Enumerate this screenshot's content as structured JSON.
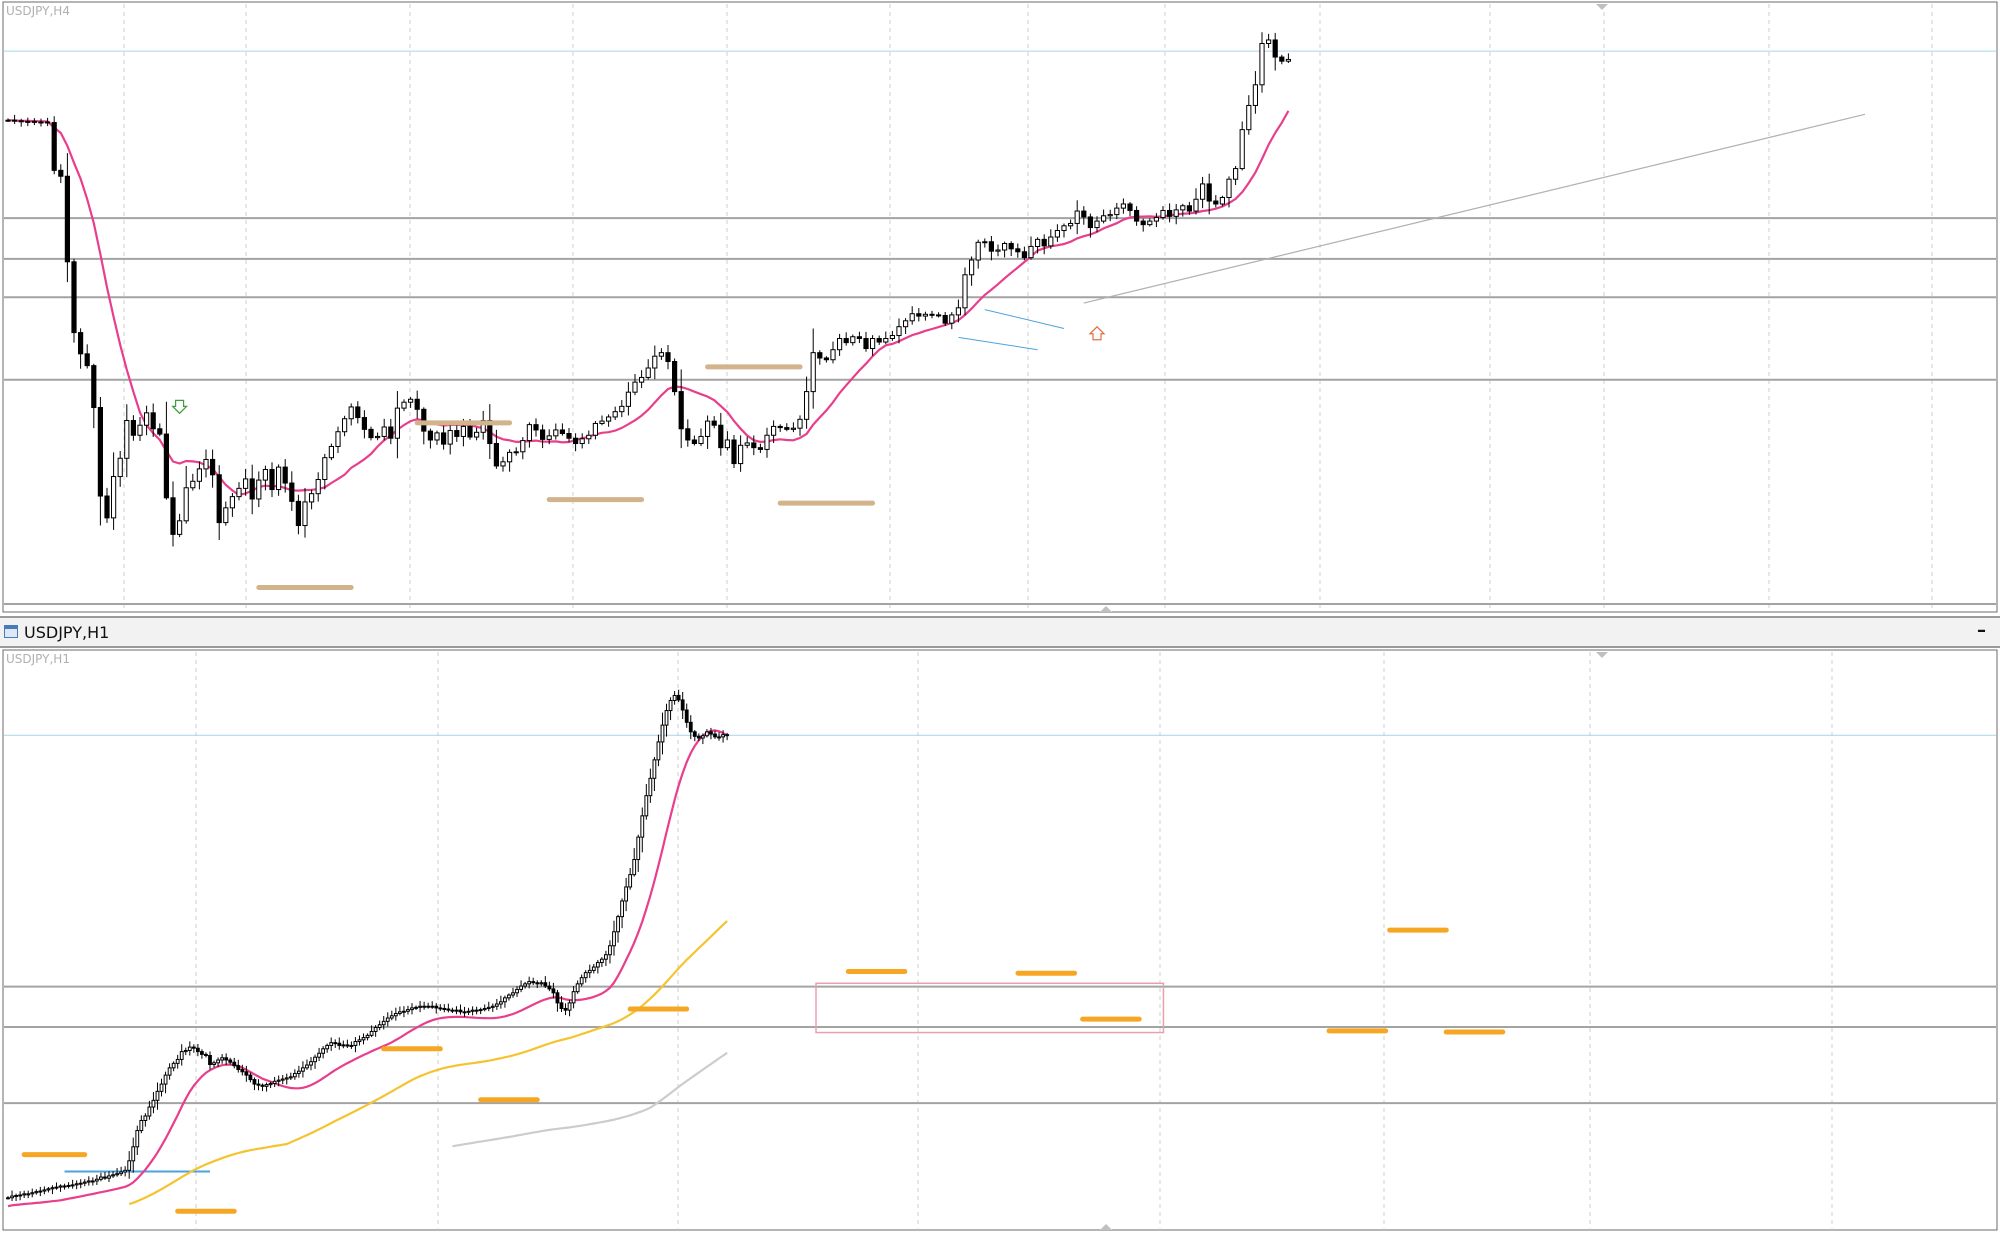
{
  "window": {
    "title": "USDJPY,H1",
    "minimize_label": "–"
  },
  "panes": [
    {
      "id": "h4",
      "label": "USDJPY,H4"
    },
    {
      "id": "h1",
      "label": "USDJPY,H1"
    }
  ],
  "colors": {
    "background": "#ffffff",
    "grid": "#cfcfcf",
    "level_line": "#a3a3a3",
    "bull_candle": "#ffffff",
    "bear_candle": "#000000",
    "candle_outline": "#000000",
    "ma_fast": "#e83e8c",
    "ma_mid": "#f4c430",
    "ma_slow": "#cccccc",
    "zone_h4": "#d2b48c",
    "zone_h1": "#f5a623",
    "current_price": "#a9d4ec",
    "trend_line": "#b0b0b0",
    "consolidation_box": "#e8a0b0",
    "triangle_line": "#4aa3df",
    "range_top": "#4aa3df"
  },
  "chart_data": [
    {
      "type": "candlestick",
      "symbol": "USDJPY",
      "timeframe": "H4",
      "title": "USDJPY,H4",
      "ylim": [
        0,
        100
      ],
      "grid": true,
      "closes": [
        82.0,
        81.9,
        81.8,
        81.8,
        81.7,
        81.7,
        81.6,
        73.5,
        72.5,
        58.0,
        46.0,
        42.4,
        40.4,
        33.3,
        18.3,
        14.6,
        21.6,
        24.7,
        31.1,
        28.6,
        30.3,
        32.4,
        29.7,
        28.8,
        18.0,
        11.8,
        14.1,
        19.7,
        20.8,
        22.9,
        24.5,
        21.9,
        13.8,
        16.3,
        18.2,
        19.6,
        21.2,
        17.8,
        21.0,
        22.8,
        19.4,
        23.2,
        20.5,
        17.4,
        13.3,
        17.3,
        18.7,
        21.1,
        24.8,
        26.7,
        29.2,
        31.4,
        33.4,
        31.6,
        29.6,
        28.2,
        28.4,
        30.0,
        28.1,
        33.2,
        34.2,
        34.7,
        33.0,
        29.3,
        27.8,
        29.0,
        27.1,
        29.4,
        28.4,
        30.1,
        28.3,
        29.1,
        31.1,
        27.2,
        23.4,
        24.1,
        25.7,
        25.8,
        27.7,
        30.4,
        29.5,
        27.9,
        28.5,
        29.5,
        28.9,
        28.1,
        27.2,
        28.0,
        28.6,
        30.6,
        31.0,
        31.7,
        32.6,
        33.5,
        35.9,
        37.6,
        38.4,
        40.0,
        42.0,
        42.6,
        41.1,
        36.0,
        29.7,
        27.8,
        27.2,
        28.4,
        31.0,
        30.3,
        26.5,
        27.8,
        23.8,
        26.9,
        27.3,
        26.5,
        26.2,
        28.6,
        30.1,
        29.9,
        29.6,
        29.8,
        31.3,
        36.0,
        42.6,
        41.7,
        41.4,
        43.1,
        45.0,
        44.3,
        45.3,
        45.0,
        43.3,
        45.0,
        44.4,
        45.0,
        45.5,
        47.0,
        48.0,
        49.2,
        48.8,
        49.1,
        49.0,
        48.9,
        47.6,
        49.0,
        50.2,
        55.8,
        58.3,
        61.3,
        61.4,
        59.8,
        60.0,
        61.1,
        60.2,
        59.7,
        58.7,
        60.6,
        61.8,
        60.7,
        62.2,
        63.3,
        64.1,
        64.5,
        66.6,
        65.6,
        63.8,
        64.9,
        65.8,
        66.0,
        67.1,
        67.8,
        66.7,
        64.9,
        64.3,
        64.9,
        65.5,
        66.7,
        65.7,
        66.8,
        67.5,
        66.6,
        68.6,
        71.2,
        68.3,
        67.8,
        68.9,
        72.0,
        73.8,
        80.4,
        84.5,
        88.0,
        95.0,
        95.6,
        92.7,
        92.0,
        92.3
      ],
      "series": [
        {
          "name": "",
          "kind": "moving_average"
        }
      ],
      "horizontal_levels": [
        0.0,
        38.0,
        52.0,
        58.5,
        65.4
      ],
      "current_price": 93.7,
      "zones": [
        {
          "price": 2.8,
          "bar_from": 38,
          "bar_to": 52
        },
        {
          "price": 30.7,
          "bar_from": 62,
          "bar_to": 76
        },
        {
          "price": 17.7,
          "bar_from": 82,
          "bar_to": 96
        },
        {
          "price": 17.1,
          "bar_from": 117,
          "bar_to": 131
        },
        {
          "price": 40.2,
          "bar_from": 106,
          "bar_to": 120
        }
      ],
      "trend_line": {
        "from": [
          163,
          51.0
        ],
        "to": [
          245,
          80.0
        ]
      },
      "arrows": [
        {
          "bar": 26,
          "price": 33.5,
          "direction": "down",
          "color": "#3aa03a"
        },
        {
          "bar": 165,
          "price": 45.8,
          "direction": "up",
          "color": "#e07040"
        }
      ]
    },
    {
      "type": "candlestick",
      "symbol": "USDJPY",
      "timeframe": "H1",
      "title": "USDJPY,H1",
      "ylim": [
        0,
        100
      ],
      "grid": true,
      "closes": [
        5.4,
        5.7,
        5.8,
        5.9,
        6.1,
        6.1,
        6.3,
        6.5,
        6.6,
        6.8,
        7.0,
        7.2,
        7.3,
        7.5,
        7.5,
        7.6,
        7.7,
        7.9,
        8.0,
        8.2,
        8.4,
        8.4,
        8.7,
        9.1,
        8.9,
        9.3,
        9.5,
        9.7,
        10.0,
        10.3,
        12.0,
        14.5,
        17.4,
        19.2,
        20.0,
        21.6,
        22.8,
        24.4,
        25.7,
        27.3,
        28.6,
        29.4,
        30.1,
        31.5,
        31.7,
        32.3,
        32.1,
        31.5,
        31.0,
        30.8,
        29.2,
        29.5,
        30.0,
        30.4,
        30.0,
        29.6,
        29.0,
        28.3,
        27.9,
        27.3,
        26.5,
        25.7,
        25.5,
        25.3,
        25.6,
        25.8,
        26.2,
        26.4,
        26.6,
        26.8,
        27.0,
        27.6,
        28.0,
        28.6,
        29.1,
        29.7,
        30.5,
        31.2,
        32.0,
        32.6,
        33.1,
        33.0,
        32.6,
        32.7,
        32.5,
        32.6,
        33.3,
        33.6,
        34.0,
        34.4,
        35.1,
        35.8,
        36.3,
        36.9,
        37.5,
        37.9,
        38.3,
        38.6,
        38.7,
        39.0,
        39.3,
        39.4,
        39.6,
        39.6,
        39.5,
        39.6,
        39.3,
        39.2,
        39.1,
        38.9,
        38.8,
        38.9,
        38.6,
        38.6,
        38.7,
        38.9,
        38.9,
        39.0,
        39.2,
        39.4,
        39.6,
        40.0,
        40.4,
        41.1,
        41.6,
        42.0,
        42.6,
        43.2,
        43.6,
        44.0,
        43.8,
        43.6,
        43.8,
        43.2,
        42.7,
        42.0,
        40.2,
        39.2,
        38.9,
        40.2,
        42.2,
        43.6,
        44.7,
        45.6,
        46.0,
        46.6,
        47.4,
        48.0,
        48.8,
        50.4,
        52.9,
        55.6,
        58.4,
        60.9,
        63.1,
        65.8,
        69.8,
        73.6,
        77.2,
        80.3,
        83.6,
        86.8,
        89.8,
        92.4,
        94.2,
        95.1,
        94.3,
        92.5,
        90.3,
        88.6,
        87.8,
        87.5,
        87.9,
        88.6,
        88.2,
        87.7,
        87.7,
        88.1,
        88.0
      ],
      "series": [
        {
          "name": "",
          "kind": "moving_average"
        },
        {
          "name": "",
          "kind": "moving_average"
        },
        {
          "name": "",
          "kind": "moving_average"
        }
      ],
      "horizontal_levels": [
        22.3,
        35.9,
        43.1
      ],
      "current_price": 88.0,
      "zones": [
        {
          "price": 13.1,
          "bar_from": 4,
          "bar_to": 19
        },
        {
          "price": 3.0,
          "bar_from": 42,
          "bar_to": 56
        },
        {
          "price": 32.0,
          "bar_from": 93,
          "bar_to": 107
        },
        {
          "price": 22.9,
          "bar_from": 117,
          "bar_to": 131
        },
        {
          "price": 39.1,
          "bar_from": 154,
          "bar_to": 168
        },
        {
          "price": 45.8,
          "bar_from": 208,
          "bar_to": 222
        },
        {
          "price": 45.5,
          "bar_from": 250,
          "bar_to": 264
        },
        {
          "price": 37.3,
          "bar_from": 266,
          "bar_to": 280
        },
        {
          "price": 35.2,
          "bar_from": 327,
          "bar_to": 341
        },
        {
          "price": 53.2,
          "bar_from": 342,
          "bar_to": 356
        },
        {
          "price": 35.0,
          "bar_from": 356,
          "bar_to": 370
        }
      ],
      "consolidation_box": {
        "bar_from": 200,
        "bar_to": 286,
        "price_low": 34.9,
        "price_high": 43.7
      },
      "range_top_line": {
        "bar_from": 14,
        "bar_to": 50,
        "price": 10.1
      }
    }
  ]
}
